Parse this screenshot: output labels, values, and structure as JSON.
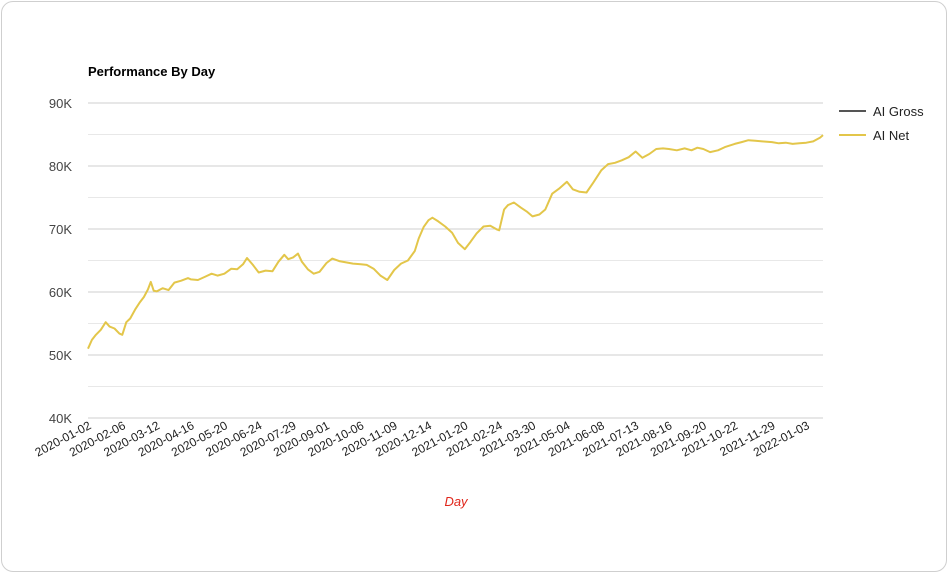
{
  "chart_data": {
    "type": "line",
    "title": "Performance By Day",
    "xlabel": "Day",
    "ylabel": "",
    "ylim": [
      40000,
      90000
    ],
    "y_ticks": [
      {
        "value": 40000,
        "label": "40K"
      },
      {
        "value": 50000,
        "label": "50K"
      },
      {
        "value": 60000,
        "label": "60K"
      },
      {
        "value": 70000,
        "label": "70K"
      },
      {
        "value": 80000,
        "label": "80K"
      },
      {
        "value": 90000,
        "label": "90K"
      }
    ],
    "x_ticks": [
      "2020-01-02",
      "2020-02-06",
      "2020-03-12",
      "2020-04-16",
      "2020-05-20",
      "2020-06-24",
      "2020-07-29",
      "2020-09-01",
      "2020-10-06",
      "2020-11-09",
      "2020-12-14",
      "2021-01-20",
      "2021-02-24",
      "2021-03-30",
      "2021-05-04",
      "2021-06-08",
      "2021-07-13",
      "2021-08-16",
      "2021-09-20",
      "2021-10-22",
      "2021-11-29",
      "2022-01-03"
    ],
    "x_range": [
      "2020-01-02",
      "2022-01-20"
    ],
    "grid": "horizontal",
    "legend_position": "top-right",
    "series": [
      {
        "name": "AI Gross",
        "color": "#555555",
        "points": []
      },
      {
        "name": "AI Net",
        "color": "#e3c64a",
        "points": [
          [
            "2020-01-02",
            51000
          ],
          [
            "2020-01-06",
            52400
          ],
          [
            "2020-01-10",
            53200
          ],
          [
            "2020-01-15",
            54000
          ],
          [
            "2020-01-20",
            55200
          ],
          [
            "2020-01-24",
            54500
          ],
          [
            "2020-01-29",
            54200
          ],
          [
            "2020-02-03",
            53400
          ],
          [
            "2020-02-06",
            53200
          ],
          [
            "2020-02-10",
            55200
          ],
          [
            "2020-02-14",
            55800
          ],
          [
            "2020-02-19",
            57200
          ],
          [
            "2020-02-24",
            58400
          ],
          [
            "2020-02-28",
            59200
          ],
          [
            "2020-03-03",
            60400
          ],
          [
            "2020-03-06",
            61600
          ],
          [
            "2020-03-09",
            60200
          ],
          [
            "2020-03-12",
            60100
          ],
          [
            "2020-03-18",
            60600
          ],
          [
            "2020-03-24",
            60300
          ],
          [
            "2020-03-30",
            61500
          ],
          [
            "2020-04-06",
            61800
          ],
          [
            "2020-04-13",
            62200
          ],
          [
            "2020-04-16",
            62000
          ],
          [
            "2020-04-23",
            61900
          ],
          [
            "2020-04-30",
            62400
          ],
          [
            "2020-05-07",
            62900
          ],
          [
            "2020-05-13",
            62600
          ],
          [
            "2020-05-20",
            62900
          ],
          [
            "2020-05-27",
            63700
          ],
          [
            "2020-06-02",
            63600
          ],
          [
            "2020-06-08",
            64400
          ],
          [
            "2020-06-12",
            65400
          ],
          [
            "2020-06-18",
            64300
          ],
          [
            "2020-06-24",
            63100
          ],
          [
            "2020-07-01",
            63400
          ],
          [
            "2020-07-08",
            63300
          ],
          [
            "2020-07-14",
            64800
          ],
          [
            "2020-07-20",
            65900
          ],
          [
            "2020-07-24",
            65200
          ],
          [
            "2020-07-29",
            65500
          ],
          [
            "2020-08-03",
            66100
          ],
          [
            "2020-08-07",
            64800
          ],
          [
            "2020-08-13",
            63600
          ],
          [
            "2020-08-19",
            62900
          ],
          [
            "2020-08-25",
            63200
          ],
          [
            "2020-09-01",
            64600
          ],
          [
            "2020-09-07",
            65300
          ],
          [
            "2020-09-14",
            64900
          ],
          [
            "2020-09-21",
            64700
          ],
          [
            "2020-09-28",
            64500
          ],
          [
            "2020-10-06",
            64400
          ],
          [
            "2020-10-12",
            64300
          ],
          [
            "2020-10-19",
            63700
          ],
          [
            "2020-10-26",
            62600
          ],
          [
            "2020-11-02",
            61900
          ],
          [
            "2020-11-09",
            63500
          ],
          [
            "2020-11-16",
            64500
          ],
          [
            "2020-11-23",
            65000
          ],
          [
            "2020-11-30",
            66500
          ],
          [
            "2020-12-04",
            68500
          ],
          [
            "2020-12-09",
            70300
          ],
          [
            "2020-12-14",
            71400
          ],
          [
            "2020-12-18",
            71800
          ],
          [
            "2020-12-24",
            71200
          ],
          [
            "2020-12-31",
            70400
          ],
          [
            "2021-01-07",
            69400
          ],
          [
            "2021-01-13",
            67800
          ],
          [
            "2021-01-20",
            66800
          ],
          [
            "2021-01-26",
            68000
          ],
          [
            "2021-02-01",
            69300
          ],
          [
            "2021-02-08",
            70400
          ],
          [
            "2021-02-15",
            70500
          ],
          [
            "2021-02-22",
            69900
          ],
          [
            "2021-02-24",
            69800
          ],
          [
            "2021-03-01",
            73100
          ],
          [
            "2021-03-05",
            73800
          ],
          [
            "2021-03-11",
            74200
          ],
          [
            "2021-03-18",
            73400
          ],
          [
            "2021-03-24",
            72800
          ],
          [
            "2021-03-30",
            72000
          ],
          [
            "2021-04-06",
            72300
          ],
          [
            "2021-04-12",
            73100
          ],
          [
            "2021-04-19",
            75600
          ],
          [
            "2021-04-26",
            76400
          ],
          [
            "2021-05-04",
            77500
          ],
          [
            "2021-05-10",
            76300
          ],
          [
            "2021-05-17",
            75900
          ],
          [
            "2021-05-24",
            75800
          ],
          [
            "2021-05-31",
            77400
          ],
          [
            "2021-06-08",
            79300
          ],
          [
            "2021-06-15",
            80300
          ],
          [
            "2021-06-22",
            80500
          ],
          [
            "2021-06-29",
            80900
          ],
          [
            "2021-07-06",
            81400
          ],
          [
            "2021-07-13",
            82300
          ],
          [
            "2021-07-20",
            81300
          ],
          [
            "2021-07-27",
            81900
          ],
          [
            "2021-08-03",
            82700
          ],
          [
            "2021-08-10",
            82800
          ],
          [
            "2021-08-16",
            82700
          ],
          [
            "2021-08-24",
            82500
          ],
          [
            "2021-09-01",
            82800
          ],
          [
            "2021-09-08",
            82500
          ],
          [
            "2021-09-14",
            82900
          ],
          [
            "2021-09-20",
            82700
          ],
          [
            "2021-09-27",
            82200
          ],
          [
            "2021-10-05",
            82500
          ],
          [
            "2021-10-12",
            83000
          ],
          [
            "2021-10-22",
            83500
          ],
          [
            "2021-10-29",
            83800
          ],
          [
            "2021-11-05",
            84100
          ],
          [
            "2021-11-12",
            84000
          ],
          [
            "2021-11-19",
            83900
          ],
          [
            "2021-11-29",
            83800
          ],
          [
            "2021-12-06",
            83600
          ],
          [
            "2021-12-13",
            83700
          ],
          [
            "2021-12-20",
            83500
          ],
          [
            "2021-12-27",
            83600
          ],
          [
            "2022-01-03",
            83700
          ],
          [
            "2022-01-10",
            83900
          ],
          [
            "2022-01-17",
            84500
          ],
          [
            "2022-01-20",
            84900
          ]
        ]
      }
    ]
  }
}
